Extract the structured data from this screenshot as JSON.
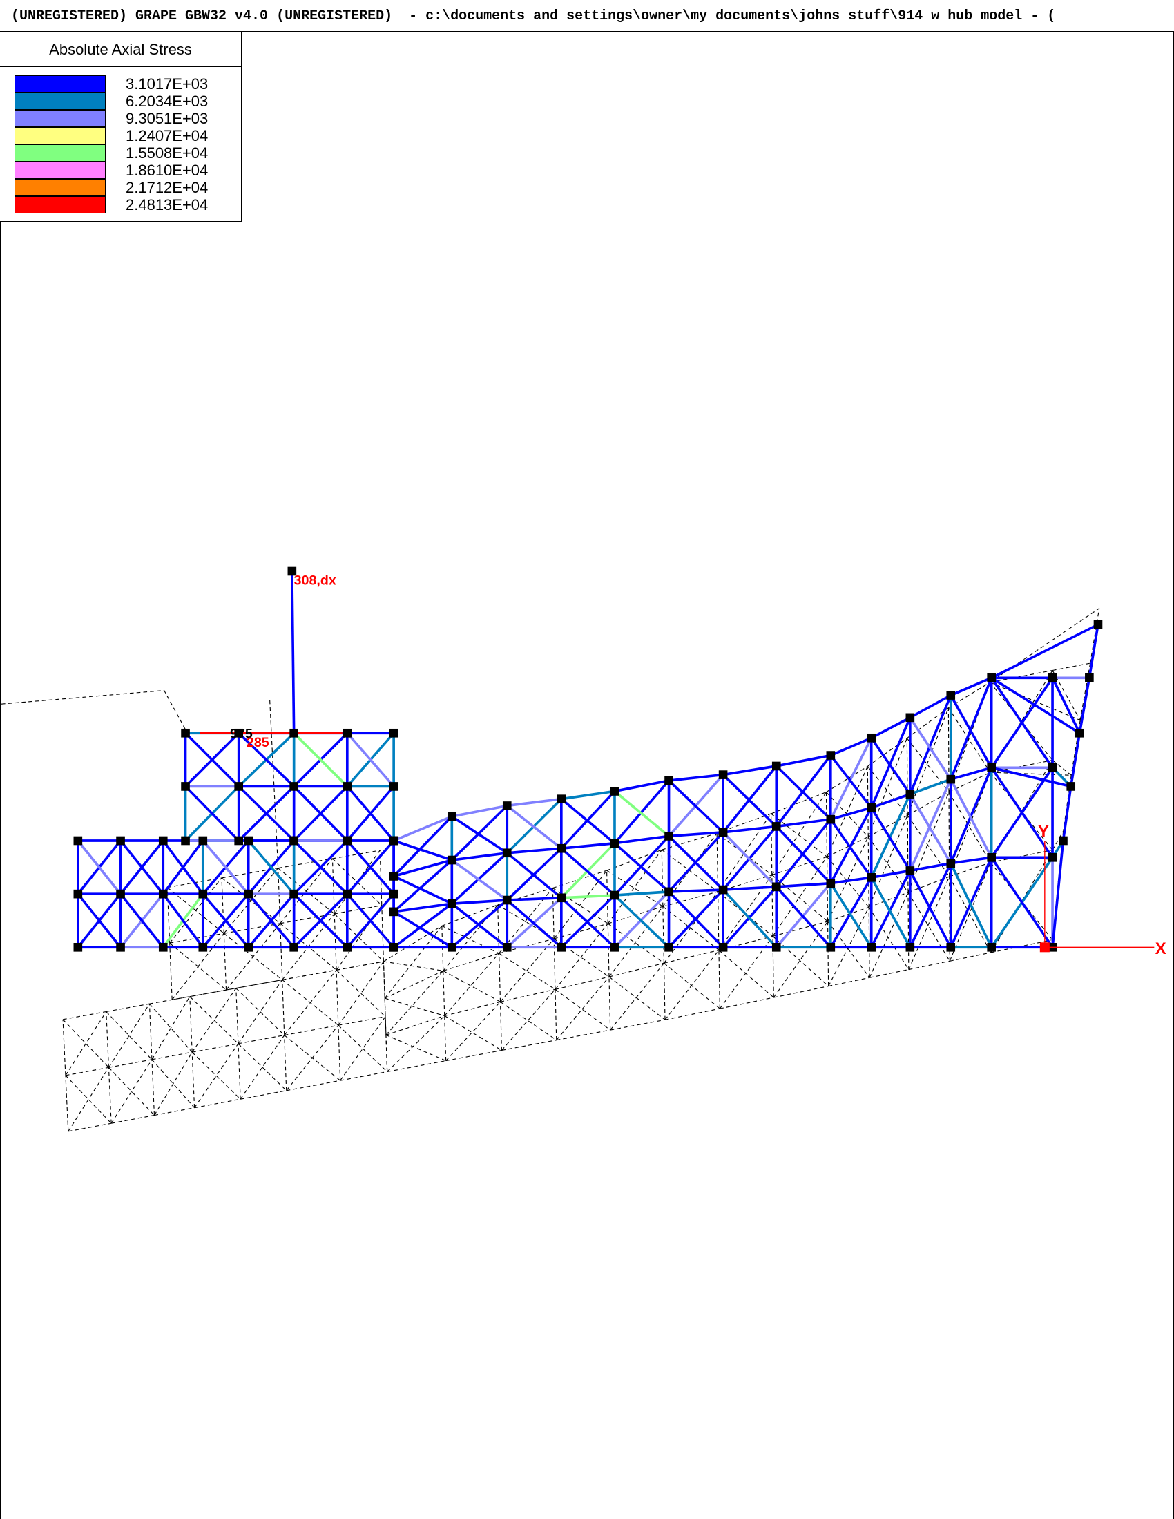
{
  "window": {
    "title": "(UNREGISTERED) GRAPE GBW32 v4.0 (UNREGISTERED)  - c:\\documents and settings\\owner\\my documents\\johns stuff\\914 w hub model - ("
  },
  "legend": {
    "title": "Absolute Axial Stress",
    "entries": [
      {
        "label": "3.1017E+03",
        "color": "#0000ff"
      },
      {
        "label": "6.2034E+03",
        "color": "#0080c0"
      },
      {
        "label": "9.3051E+03",
        "color": "#8080ff"
      },
      {
        "label": "1.2407E+04",
        "color": "#ffff80"
      },
      {
        "label": "1.5508E+04",
        "color": "#80ff80"
      },
      {
        "label": "1.8610E+04",
        "color": "#ff80ff"
      },
      {
        "label": "2.1712E+04",
        "color": "#ff8000"
      },
      {
        "label": "2.4813E+04",
        "color": "#ff0000"
      }
    ]
  },
  "model": {
    "node_labels": {
      "top": "308,dx",
      "mid_black": "975",
      "mid_red": "285"
    },
    "axes": {
      "x_label": "X",
      "y_label": "Y",
      "color": "#ff0000"
    },
    "deformed_style": "dashed",
    "node_color": "#000000"
  }
}
